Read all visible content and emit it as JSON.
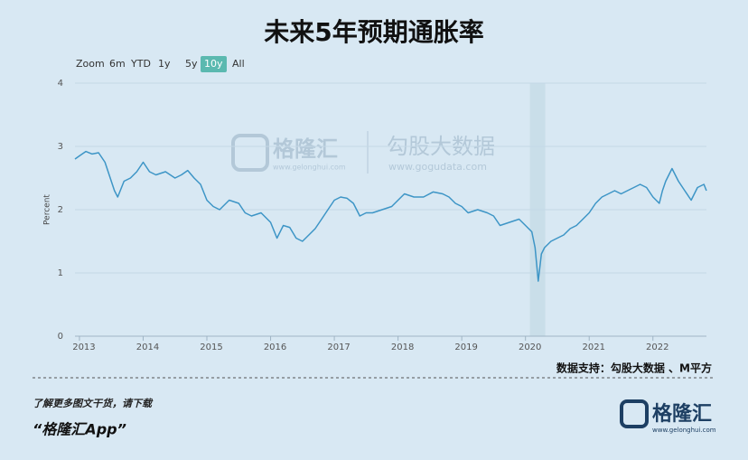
{
  "page": {
    "title": "未来5年预期通胀率",
    "zoom_label": "Zoom",
    "zoom_buttons": [
      "6m",
      "YTD",
      "1y",
      "5y",
      "10y",
      "All"
    ],
    "active_zoom": 4,
    "watermark": {
      "brand": "格隆汇",
      "brand_url": "www.gelonghui.com",
      "partner": "勾股大数据",
      "partner_url": "www.gogudata.com"
    },
    "source": "数据支持：勾股大数据 、M平方",
    "promo": "了解更多图文干货，请下载",
    "app": "“格隆汇App”",
    "logo": "格隆汇",
    "logo_url": "www.gelonghui.com"
  },
  "chart_data": {
    "type": "line",
    "ylabel": "Percent",
    "color": "#3d95c6",
    "shaded_x": [
      2020.07,
      2020.31
    ],
    "shade_color": "#c5dbe6",
    "grid": true,
    "xlim": [
      2012.93,
      2022.84
    ],
    "xticks": [
      2013,
      2014,
      2015,
      2016,
      2017,
      2018,
      2019,
      2020,
      2021,
      2022
    ],
    "ylim": [
      0,
      4
    ],
    "yticks": [
      0,
      1,
      2,
      3,
      4
    ],
    "x": [
      2012.93,
      2013.0,
      2013.1,
      2013.2,
      2013.3,
      2013.4,
      2013.45,
      2013.55,
      2013.6,
      2013.7,
      2013.8,
      2013.9,
      2014.0,
      2014.1,
      2014.2,
      2014.35,
      2014.5,
      2014.6,
      2014.7,
      2014.8,
      2014.9,
      2015.0,
      2015.1,
      2015.2,
      2015.35,
      2015.5,
      2015.6,
      2015.7,
      2015.85,
      2016.0,
      2016.1,
      2016.2,
      2016.3,
      2016.4,
      2016.5,
      2016.6,
      2016.7,
      2016.8,
      2016.9,
      2017.0,
      2017.1,
      2017.2,
      2017.3,
      2017.4,
      2017.5,
      2017.6,
      2017.75,
      2017.9,
      2018.0,
      2018.1,
      2018.25,
      2018.4,
      2018.55,
      2018.7,
      2018.8,
      2018.9,
      2019.0,
      2019.1,
      2019.25,
      2019.4,
      2019.5,
      2019.6,
      2019.75,
      2019.9,
      2020.0,
      2020.1,
      2020.15,
      2020.2,
      2020.25,
      2020.3,
      2020.4,
      2020.5,
      2020.6,
      2020.7,
      2020.8,
      2020.9,
      2021.0,
      2021.1,
      2021.2,
      2021.3,
      2021.4,
      2021.5,
      2021.6,
      2021.7,
      2021.8,
      2021.9,
      2022.0,
      2022.1,
      2022.15,
      2022.2,
      2022.3,
      2022.4,
      2022.5,
      2022.6,
      2022.7,
      2022.8,
      2022.84
    ],
    "values": [
      2.8,
      2.85,
      2.92,
      2.88,
      2.9,
      2.75,
      2.6,
      2.3,
      2.2,
      2.45,
      2.5,
      2.6,
      2.75,
      2.6,
      2.55,
      2.6,
      2.5,
      2.55,
      2.62,
      2.5,
      2.4,
      2.15,
      2.05,
      2.0,
      2.15,
      2.1,
      1.95,
      1.9,
      1.95,
      1.8,
      1.55,
      1.75,
      1.72,
      1.55,
      1.5,
      1.6,
      1.7,
      1.85,
      2.0,
      2.15,
      2.2,
      2.18,
      2.1,
      1.9,
      1.95,
      1.95,
      2.0,
      2.05,
      2.15,
      2.25,
      2.2,
      2.2,
      2.28,
      2.25,
      2.2,
      2.1,
      2.05,
      1.95,
      2.0,
      1.95,
      1.9,
      1.75,
      1.8,
      1.85,
      1.75,
      1.65,
      1.4,
      0.87,
      1.3,
      1.4,
      1.5,
      1.55,
      1.6,
      1.7,
      1.75,
      1.85,
      1.95,
      2.1,
      2.2,
      2.25,
      2.3,
      2.25,
      2.3,
      2.35,
      2.4,
      2.35,
      2.2,
      2.1,
      2.3,
      2.45,
      2.65,
      2.45,
      2.3,
      2.15,
      2.35,
      2.4,
      2.3
    ]
  }
}
